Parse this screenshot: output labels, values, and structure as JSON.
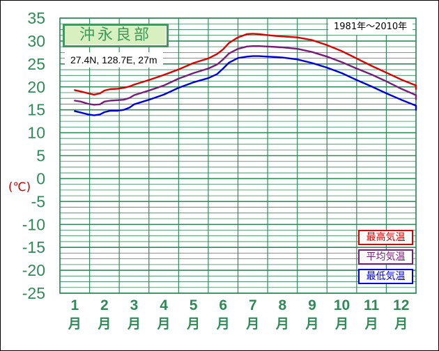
{
  "station": {
    "name": "沖永良部",
    "coords": "27.4N,  128.7E,  27m",
    "period": "1981年〜2010年"
  },
  "unit_label": "(℃)",
  "colors": {
    "grid": "#2e8b57",
    "axis_text": "#2e8b57",
    "max_temp": "#dd0000",
    "mean_temp": "#7a1a7a",
    "min_temp": "#0000dd"
  },
  "chart_data": {
    "type": "line",
    "x": [
      1,
      2,
      3,
      4,
      5,
      6,
      7,
      8,
      9,
      10,
      11,
      12
    ],
    "categories": [
      {
        "num": "1",
        "unit": "月"
      },
      {
        "num": "2",
        "unit": "月"
      },
      {
        "num": "3",
        "unit": "月"
      },
      {
        "num": "4",
        "unit": "月"
      },
      {
        "num": "5",
        "unit": "月"
      },
      {
        "num": "6",
        "unit": "月"
      },
      {
        "num": "7",
        "unit": "月"
      },
      {
        "num": "8",
        "unit": "月"
      },
      {
        "num": "9",
        "unit": "月"
      },
      {
        "num": "10",
        "unit": "月"
      },
      {
        "num": "11",
        "unit": "月"
      },
      {
        "num": "12",
        "unit": "月"
      }
    ],
    "xlim": [
      1,
      12.9
    ],
    "ylim": [
      -25,
      35
    ],
    "yticks": [
      35,
      30,
      25,
      20,
      15,
      10,
      5,
      0,
      -5,
      -10,
      -15,
      -20,
      -25
    ],
    "grid": true,
    "minor_gridlines_per_unit": 1,
    "legend_placement": "bottom-right",
    "series": [
      {
        "name": "最高気温",
        "color": "#dd0000",
        "x": [
          1.0,
          1.2,
          1.45,
          1.65,
          1.85,
          2.0,
          2.2,
          2.45,
          2.65,
          2.85,
          3.0,
          3.5,
          4.0,
          4.5,
          5.0,
          5.5,
          5.8,
          6.0,
          6.2,
          6.5,
          6.8,
          7.0,
          7.2,
          7.5,
          7.8,
          8.0,
          8.5,
          9.0,
          9.5,
          10.0,
          10.5,
          11.0,
          11.5,
          12.0,
          12.5,
          12.9
        ],
        "values": [
          19.3,
          19.0,
          18.6,
          18.3,
          18.6,
          19.2,
          19.5,
          19.6,
          19.8,
          20.1,
          20.5,
          21.5,
          22.6,
          23.8,
          25.2,
          26.2,
          27.2,
          28.2,
          29.6,
          30.8,
          31.5,
          31.6,
          31.5,
          31.3,
          31.1,
          31.0,
          30.8,
          30.2,
          29.1,
          27.8,
          26.2,
          24.6,
          23.1,
          21.6,
          20.3,
          19.5
        ]
      },
      {
        "name": "平均気温",
        "color": "#7a1a7a",
        "x": [
          1.0,
          1.2,
          1.45,
          1.65,
          1.85,
          2.0,
          2.2,
          2.45,
          2.65,
          2.85,
          3.0,
          3.5,
          4.0,
          4.5,
          5.0,
          5.5,
          5.8,
          6.0,
          6.2,
          6.5,
          6.8,
          7.0,
          7.2,
          7.5,
          7.8,
          8.0,
          8.5,
          9.0,
          9.5,
          10.0,
          10.5,
          11.0,
          11.5,
          12.0,
          12.5,
          12.9
        ],
        "values": [
          17.0,
          16.8,
          16.3,
          16.1,
          16.2,
          16.8,
          17.0,
          17.1,
          17.2,
          17.6,
          18.2,
          19.2,
          20.3,
          21.8,
          23.0,
          24.0,
          24.9,
          26.0,
          27.3,
          28.3,
          28.8,
          28.9,
          28.9,
          28.8,
          28.7,
          28.6,
          28.3,
          27.6,
          26.6,
          25.4,
          24.0,
          22.7,
          21.2,
          19.6,
          18.2,
          17.3
        ]
      },
      {
        "name": "最低気温",
        "color": "#0000dd",
        "x": [
          1.0,
          1.2,
          1.45,
          1.65,
          1.85,
          2.0,
          2.2,
          2.45,
          2.65,
          2.85,
          3.0,
          3.5,
          4.0,
          4.5,
          5.0,
          5.5,
          5.8,
          6.0,
          6.2,
          6.5,
          6.8,
          7.0,
          7.2,
          7.5,
          7.8,
          8.0,
          8.5,
          9.0,
          9.5,
          10.0,
          10.5,
          11.0,
          11.5,
          12.0,
          12.5,
          12.9
        ],
        "values": [
          14.7,
          14.4,
          14.0,
          13.8,
          14.0,
          14.5,
          14.8,
          14.8,
          15.0,
          15.5,
          16.2,
          17.2,
          18.3,
          19.8,
          21.0,
          21.9,
          22.8,
          24.0,
          25.3,
          26.3,
          26.6,
          26.7,
          26.7,
          26.6,
          26.5,
          26.4,
          26.0,
          25.2,
          24.2,
          23.0,
          21.5,
          20.1,
          18.6,
          17.2,
          15.9,
          15.0
        ]
      }
    ]
  }
}
